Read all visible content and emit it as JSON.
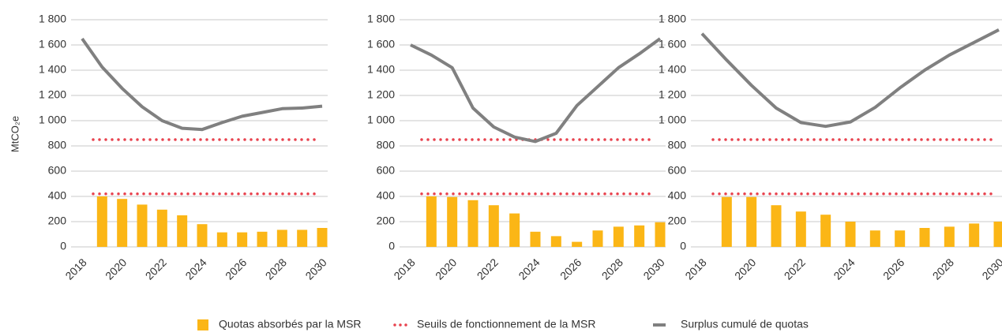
{
  "chart_data": [
    {
      "type": "combo",
      "ylabel": "MtCO₂e",
      "x": [
        2018,
        2019,
        2020,
        2021,
        2022,
        2023,
        2024,
        2025,
        2026,
        2027,
        2028,
        2029,
        2030
      ],
      "bars": [
        null,
        400,
        380,
        335,
        295,
        250,
        180,
        115,
        115,
        120,
        135,
        135,
        150
      ],
      "line": [
        1650,
        1425,
        1256,
        1110,
        1000,
        940,
        930,
        985,
        1035,
        1065,
        1095,
        1100,
        1115
      ],
      "thresholds": [
        850,
        420
      ],
      "xlim": [
        2018,
        2030
      ],
      "xticks": [
        2018,
        2020,
        2022,
        2024,
        2026,
        2028,
        2030
      ],
      "ylim": [
        0,
        1800
      ],
      "yticks": [
        0,
        200,
        400,
        600,
        800,
        {
          "value": 1000,
          "label": "1 000"
        },
        {
          "value": 1200,
          "label": "1 200"
        },
        {
          "value": 1400,
          "label": "1 400"
        },
        {
          "value": 1600,
          "label": "1 600"
        },
        {
          "value": 1800,
          "label": "1 800"
        }
      ]
    },
    {
      "type": "combo",
      "x": [
        2018,
        2019,
        2020,
        2021,
        2022,
        2023,
        2024,
        2025,
        2026,
        2027,
        2028,
        2029,
        2030
      ],
      "bars": [
        null,
        400,
        395,
        370,
        330,
        265,
        120,
        85,
        40,
        130,
        160,
        170,
        195
      ],
      "line": [
        1600,
        1520,
        1420,
        1100,
        950,
        870,
        835,
        900,
        1120,
        1270,
        1420,
        1530,
        1650
      ],
      "thresholds": [
        850,
        420
      ],
      "xlim": [
        2018,
        2030
      ],
      "xticks": [
        2018,
        2020,
        2022,
        2024,
        2026,
        2028,
        2030
      ],
      "ylim": [
        0,
        1800
      ],
      "yticks": [
        0,
        200,
        400,
        600,
        800,
        {
          "value": 1000,
          "label": "1 000"
        },
        {
          "value": 1200,
          "label": "1 200"
        },
        {
          "value": 1400,
          "label": "1 400"
        },
        {
          "value": 1600,
          "label": "1 600"
        },
        {
          "value": 1800,
          "label": "1 800"
        }
      ]
    },
    {
      "type": "combo",
      "x": [
        2018,
        2019,
        2020,
        2021,
        2022,
        2023,
        2024,
        2025,
        2026,
        2027,
        2028,
        2029,
        2030
      ],
      "bars": [
        null,
        395,
        395,
        330,
        280,
        255,
        200,
        130,
        130,
        150,
        160,
        185,
        200
      ],
      "line": [
        1690,
        1480,
        1280,
        1100,
        985,
        955,
        990,
        1105,
        1260,
        1400,
        1520,
        1620,
        1720
      ],
      "thresholds": [
        850,
        420
      ],
      "xlim": [
        2018,
        2030
      ],
      "xticks": [
        2018,
        2020,
        2022,
        2024,
        2026,
        2028,
        2030
      ],
      "ylim": [
        0,
        1800
      ],
      "yticks": [
        0,
        200,
        400,
        600,
        800,
        {
          "value": 1000,
          "label": "1 000"
        },
        {
          "value": 1200,
          "label": "1 200"
        },
        {
          "value": 1400,
          "label": "1 400"
        },
        {
          "value": 1600,
          "label": "1 600"
        },
        {
          "value": 1800,
          "label": "1 800"
        }
      ]
    }
  ],
  "legend": {
    "bars": {
      "name": "Quotas absorbés par la MSR",
      "color": "#fbb616"
    },
    "thresholds": {
      "name": "Seuils de fonctionnement de la MSR",
      "color": "#e8424e"
    },
    "line": {
      "name": "Surplus cumulé de quotas",
      "color": "#808080"
    }
  }
}
